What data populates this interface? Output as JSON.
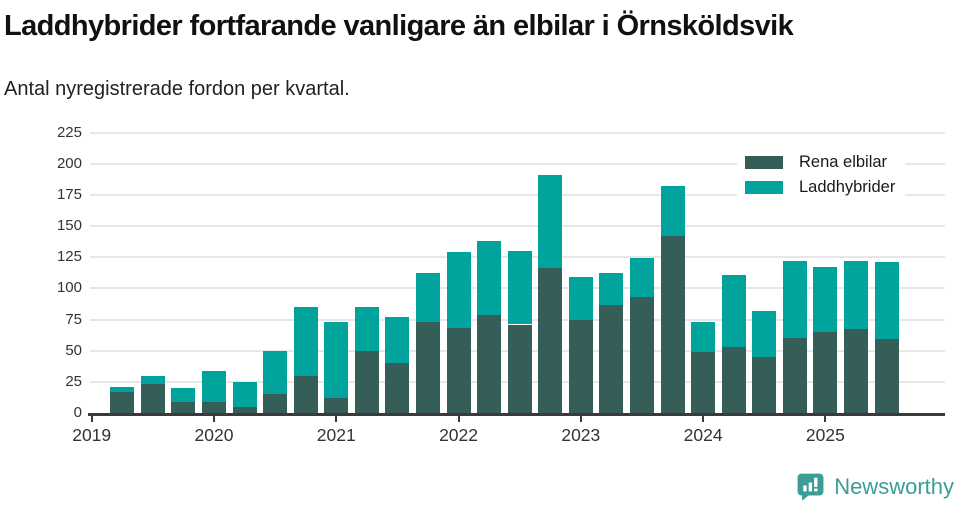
{
  "title": "Laddhybrider fortfarande vanligare än elbilar i Örnsköldsvik",
  "subtitle": "Antal nyregistrerade fordon per kvartal.",
  "legend": {
    "items": [
      {
        "label": "Rena elbilar",
        "color": "#355E58"
      },
      {
        "label": "Laddhybrider",
        "color": "#00A49D"
      }
    ]
  },
  "footer": {
    "brand": "Newsworthy",
    "brand_color": "#3A9E97"
  },
  "colors": {
    "axis": "#3a3a3a",
    "grid": "#e7e7e7",
    "tick_text": "#333333"
  },
  "chart_data": {
    "type": "bar",
    "stacked": true,
    "title": "Laddhybrider fortfarande vanligare än elbilar i Örnsköldsvik",
    "subtitle": "Antal nyregistrerade fordon per kvartal.",
    "xlabel": "",
    "ylabel": "",
    "ylim": [
      0,
      225
    ],
    "grid": true,
    "legend_position": "top-right",
    "y_ticks": [
      0,
      25,
      50,
      75,
      100,
      125,
      150,
      175,
      200,
      225
    ],
    "x": [
      "2019Q1",
      "2019Q2",
      "2019Q3",
      "2019Q4",
      "2020Q1",
      "2020Q2",
      "2020Q3",
      "2020Q4",
      "2021Q1",
      "2021Q2",
      "2021Q3",
      "2021Q4",
      "2022Q1",
      "2022Q2",
      "2022Q3",
      "2022Q4",
      "2023Q1",
      "2023Q2",
      "2023Q3",
      "2023Q4",
      "2024Q1",
      "2024Q2",
      "2024Q3",
      "2024Q4",
      "2025Q1",
      "2025Q2",
      "2025Q3"
    ],
    "year_ticks": [
      {
        "label": "2019",
        "slot": 0
      },
      {
        "label": "2020",
        "slot": 4
      },
      {
        "label": "2021",
        "slot": 8
      },
      {
        "label": "2022",
        "slot": 12
      },
      {
        "label": "2023",
        "slot": 16
      },
      {
        "label": "2024",
        "slot": 20
      },
      {
        "label": "2025",
        "slot": 24
      }
    ],
    "series": [
      {
        "name": "Rena elbilar",
        "color": "#355E58",
        "values": [
          0,
          17,
          23,
          9,
          9,
          5,
          15,
          30,
          12,
          50,
          40,
          73,
          68,
          79,
          71,
          116,
          75,
          87,
          93,
          142,
          49,
          53,
          45,
          60,
          65,
          67,
          59
        ]
      },
      {
        "name": "Laddhybrider",
        "color": "#00A49D",
        "values": [
          0,
          4,
          7,
          11,
          25,
          20,
          35,
          55,
          61,
          35,
          37,
          39,
          61,
          59,
          59,
          75,
          34,
          25,
          31,
          40,
          24,
          58,
          37,
          62,
          52,
          55,
          62
        ]
      }
    ]
  }
}
